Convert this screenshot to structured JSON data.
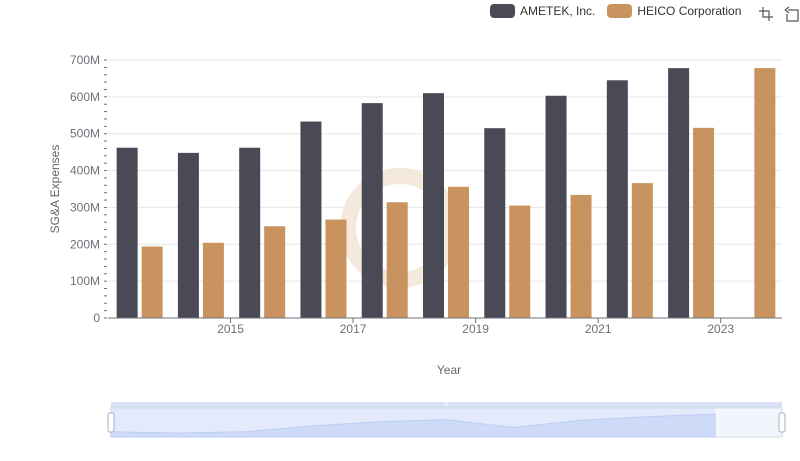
{
  "chart_data": {
    "type": "bar",
    "categories": [
      "2014",
      "2015",
      "2016",
      "2017",
      "2018",
      "2019",
      "2020",
      "2021",
      "2022",
      "2023",
      "2024"
    ],
    "x_tick_labels": [
      "2015",
      "2017",
      "2019",
      "2021",
      "2023"
    ],
    "series": [
      {
        "name": "AMETEK, Inc.",
        "color": "#4a4a56",
        "values": [
          462,
          448,
          462,
          533,
          583,
          610,
          515,
          603,
          645,
          678,
          null
        ]
      },
      {
        "name": "HEICO Corporation",
        "color": "#c8935e",
        "values": [
          194,
          204,
          249,
          267,
          314,
          356,
          305,
          334,
          366,
          516,
          678
        ]
      }
    ],
    "y_unit": "M",
    "ylim": [
      0,
      700
    ],
    "y_ticks": [
      "0",
      "100M",
      "200M",
      "300M",
      "400M",
      "500M",
      "600M",
      "700M"
    ],
    "xlabel": "Year",
    "ylabel": "SG&A Expenses",
    "grid": true,
    "legend_position": "top-right"
  },
  "toolbox": {
    "icons": [
      "zoom-icon",
      "restore-icon"
    ]
  },
  "datazoom": {
    "handle_label": "III"
  }
}
